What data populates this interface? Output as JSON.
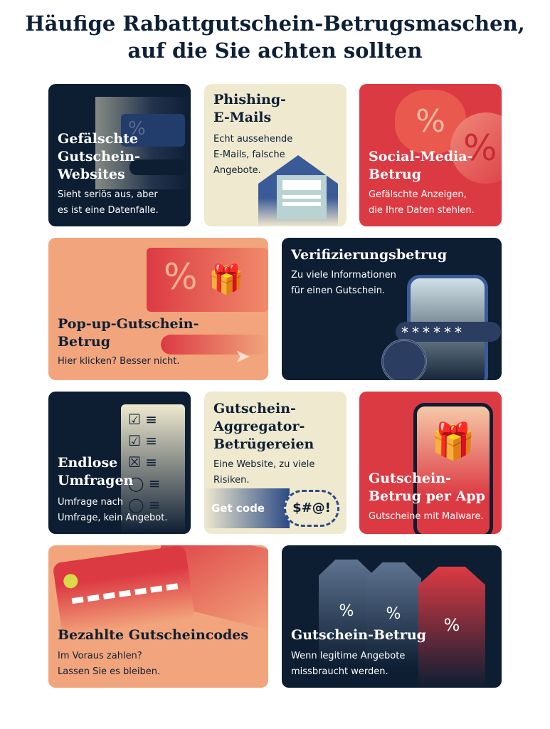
{
  "title": "Häufige Rabattgutschein-Betrugsmaschen,\nauf die Sie achten sollten",
  "cards": [
    {
      "title": "Gefälschte\nGutschein-\nWebsites",
      "desc": "Sieht seriös aus, aber\nes ist eine Datenfalle."
    },
    {
      "title": "Phishing-\nE-Mails",
      "desc": "Echt aussehende\nE-Mails, falsche\nAngebote."
    },
    {
      "title": "Social-Media-\nBetrug",
      "desc": "Gefälschte Anzeigen,\ndie Ihre Daten stehlen."
    },
    {
      "title": "Pop-up-Gutschein-\nBetrug",
      "desc": "Hier klicken? Besser nicht."
    },
    {
      "title": "Verifizierungsbetrug",
      "desc": "Zu viele Informationen\nfür einen Gutschein.",
      "password_mask": "******"
    },
    {
      "title": "Endlose\nUmfragen",
      "desc": "Umfrage nach\nUmfrage, kein Angebot."
    },
    {
      "title": "Gutschein-\nAggregator-\nBetrügereien",
      "desc": "Eine Website, zu viele\nRisiken.",
      "button": "Get code",
      "symbols": "$#@!"
    },
    {
      "title": "Gutschein-\nBetrug per App",
      "desc": "Gutscheine mit Malware."
    },
    {
      "title": "Bezahlte Gutscheincodes",
      "desc": "Im Voraus zahlen?\nLassen Sie es bleiben."
    },
    {
      "title": "Gutschein-Betrug",
      "desc": "Wenn legitime Angebote\nmissbraucht werden."
    }
  ],
  "colors": {
    "navy": "#0d1e33",
    "cream": "#efe9cf",
    "red": "#dc3a43",
    "salmon": "#f2a57c"
  }
}
